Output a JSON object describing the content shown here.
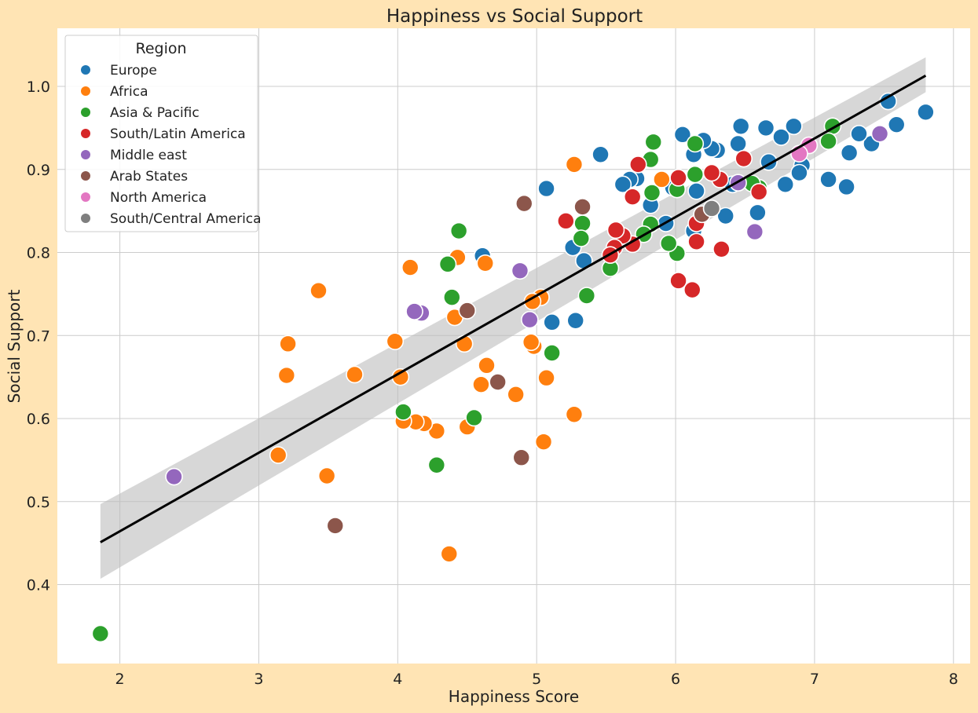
{
  "chart_data": {
    "type": "scatter",
    "title": "Happiness vs Social Support",
    "xlabel": "Happiness Score",
    "ylabel": "Social Support",
    "xlim": [
      1.55,
      8.12
    ],
    "ylim": [
      0.305,
      1.07
    ],
    "xticks": [
      2,
      3,
      4,
      5,
      6,
      7,
      8
    ],
    "yticks": [
      0.4,
      0.5,
      0.6,
      0.7,
      0.8,
      0.9,
      1.0
    ],
    "xtick_labels": [
      "2",
      "3",
      "4",
      "5",
      "6",
      "7",
      "8"
    ],
    "ytick_labels": [
      "0.4",
      "0.5",
      "0.6",
      "0.7",
      "0.8",
      "0.9",
      "1.0"
    ],
    "grid": true,
    "legend": {
      "title": "Region",
      "placement": "top-left"
    },
    "regression": {
      "x": [
        1.86,
        7.8
      ],
      "y": [
        0.451,
        1.013
      ],
      "ci_lower": [
        0.407,
        0.993
      ],
      "ci_upper": [
        0.497,
        1.035
      ],
      "color": "#000000",
      "band_color": "#bdbdbd"
    },
    "series": [
      {
        "name": "Europe",
        "color": "#1f77b4",
        "points": [
          [
            7.8,
            0.969
          ],
          [
            7.59,
            0.954
          ],
          [
            7.53,
            0.982
          ],
          [
            7.41,
            0.931
          ],
          [
            7.32,
            0.943
          ],
          [
            7.23,
            0.879
          ],
          [
            7.25,
            0.92
          ],
          [
            7.1,
            0.888
          ],
          [
            6.91,
            0.905
          ],
          [
            6.89,
            0.896
          ],
          [
            6.85,
            0.952
          ],
          [
            6.79,
            0.882
          ],
          [
            6.76,
            0.939
          ],
          [
            6.67,
            0.909
          ],
          [
            6.65,
            0.95
          ],
          [
            6.59,
            0.848
          ],
          [
            6.47,
            0.952
          ],
          [
            6.45,
            0.931
          ],
          [
            6.41,
            0.882
          ],
          [
            6.36,
            0.844
          ],
          [
            6.3,
            0.923
          ],
          [
            6.26,
            0.925
          ],
          [
            6.2,
            0.935
          ],
          [
            6.15,
            0.874
          ],
          [
            6.13,
            0.918
          ],
          [
            6.13,
            0.826
          ],
          [
            6.05,
            0.942
          ],
          [
            5.98,
            0.878
          ],
          [
            5.93,
            0.835
          ],
          [
            5.82,
            0.857
          ],
          [
            5.72,
            0.889
          ],
          [
            5.67,
            0.888
          ],
          [
            5.62,
            0.882
          ],
          [
            5.46,
            0.918
          ],
          [
            5.34,
            0.79
          ],
          [
            5.28,
            0.718
          ],
          [
            5.26,
            0.806
          ],
          [
            5.11,
            0.716
          ],
          [
            5.07,
            0.877
          ],
          [
            4.61,
            0.796
          ]
        ]
      },
      {
        "name": "Africa",
        "color": "#ff7f0e",
        "points": [
          [
            5.9,
            0.888
          ],
          [
            5.27,
            0.906
          ],
          [
            5.27,
            0.605
          ],
          [
            5.07,
            0.649
          ],
          [
            5.05,
            0.572
          ],
          [
            5.03,
            0.746
          ],
          [
            4.98,
            0.687
          ],
          [
            4.97,
            0.741
          ],
          [
            4.96,
            0.692
          ],
          [
            4.85,
            0.629
          ],
          [
            4.64,
            0.664
          ],
          [
            4.63,
            0.787
          ],
          [
            4.6,
            0.641
          ],
          [
            4.5,
            0.59
          ],
          [
            4.48,
            0.69
          ],
          [
            4.43,
            0.794
          ],
          [
            4.41,
            0.722
          ],
          [
            4.37,
            0.437
          ],
          [
            4.28,
            0.585
          ],
          [
            4.19,
            0.594
          ],
          [
            4.13,
            0.596
          ],
          [
            4.09,
            0.782
          ],
          [
            4.04,
            0.597
          ],
          [
            4.02,
            0.65
          ],
          [
            3.98,
            0.693
          ],
          [
            3.69,
            0.653
          ],
          [
            3.49,
            0.531
          ],
          [
            3.43,
            0.754
          ],
          [
            3.21,
            0.69
          ],
          [
            3.2,
            0.652
          ],
          [
            3.14,
            0.556
          ]
        ]
      },
      {
        "name": "Asia & Pacific",
        "color": "#2ca02c",
        "points": [
          [
            7.13,
            0.952
          ],
          [
            7.1,
            0.934
          ],
          [
            6.6,
            0.878
          ],
          [
            6.55,
            0.883
          ],
          [
            6.14,
            0.931
          ],
          [
            6.14,
            0.894
          ],
          [
            6.01,
            0.799
          ],
          [
            6.01,
            0.876
          ],
          [
            5.95,
            0.811
          ],
          [
            5.84,
            0.933
          ],
          [
            5.82,
            0.912
          ],
          [
            5.83,
            0.872
          ],
          [
            5.82,
            0.834
          ],
          [
            5.77,
            0.822
          ],
          [
            5.53,
            0.781
          ],
          [
            5.36,
            0.748
          ],
          [
            5.33,
            0.835
          ],
          [
            5.32,
            0.817
          ],
          [
            5.11,
            0.679
          ],
          [
            4.55,
            0.601
          ],
          [
            4.44,
            0.826
          ],
          [
            4.39,
            0.746
          ],
          [
            4.36,
            0.786
          ],
          [
            4.28,
            0.544
          ],
          [
            4.04,
            0.608
          ],
          [
            1.86,
            0.341
          ]
        ]
      },
      {
        "name": "South/Latin America",
        "color": "#d62728",
        "points": [
          [
            6.6,
            0.873
          ],
          [
            6.49,
            0.913
          ],
          [
            6.33,
            0.804
          ],
          [
            6.32,
            0.888
          ],
          [
            6.26,
            0.896
          ],
          [
            6.15,
            0.835
          ],
          [
            6.15,
            0.813
          ],
          [
            6.12,
            0.755
          ],
          [
            6.02,
            0.766
          ],
          [
            6.02,
            0.89
          ],
          [
            5.73,
            0.906
          ],
          [
            5.69,
            0.867
          ],
          [
            5.69,
            0.81
          ],
          [
            5.62,
            0.82
          ],
          [
            5.57,
            0.827
          ],
          [
            5.56,
            0.806
          ],
          [
            5.53,
            0.797
          ],
          [
            5.21,
            0.838
          ]
        ]
      },
      {
        "name": "Middle east",
        "color": "#9467bd",
        "points": [
          [
            7.47,
            0.943
          ],
          [
            6.57,
            0.825
          ],
          [
            6.45,
            0.884
          ],
          [
            4.95,
            0.719
          ],
          [
            4.88,
            0.778
          ],
          [
            4.17,
            0.727
          ],
          [
            4.12,
            0.729
          ],
          [
            2.39,
            0.53
          ]
        ]
      },
      {
        "name": "Arab States",
        "color": "#8c564b",
        "points": [
          [
            6.19,
            0.846
          ],
          [
            5.33,
            0.855
          ],
          [
            4.91,
            0.859
          ],
          [
            4.89,
            0.553
          ],
          [
            4.72,
            0.644
          ],
          [
            4.5,
            0.73
          ],
          [
            3.55,
            0.471
          ]
        ]
      },
      {
        "name": "North America",
        "color": "#e377c2",
        "points": [
          [
            6.96,
            0.929
          ],
          [
            6.89,
            0.919
          ]
        ]
      },
      {
        "name": "South/Central America",
        "color": "#7f7f7f",
        "points": [
          [
            6.26,
            0.853
          ]
        ]
      }
    ]
  }
}
